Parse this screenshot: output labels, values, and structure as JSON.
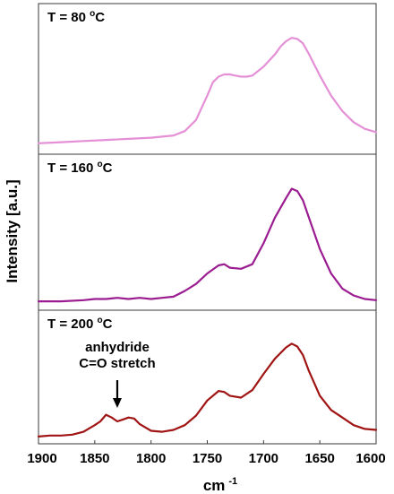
{
  "chart_data": {
    "type": "line",
    "layout": "stacked-panels",
    "x_reversed": true,
    "xlim": [
      1900,
      1600
    ],
    "xticks": [
      1900,
      1850,
      1800,
      1750,
      1700,
      1650,
      1600
    ],
    "xlabel": "cm",
    "xlabel_sup": "-1",
    "ylabel": "Intensity [a.u.]",
    "yticks_shown": false,
    "panels": [
      {
        "title_prefix": "T = 80 ",
        "title_sup": "o",
        "title_suffix": "C",
        "color": "#e58fd6",
        "ylim": [
          0,
          1.05
        ],
        "points": [
          [
            1900,
            0.05
          ],
          [
            1880,
            0.06
          ],
          [
            1860,
            0.07
          ],
          [
            1840,
            0.08
          ],
          [
            1820,
            0.09
          ],
          [
            1800,
            0.1
          ],
          [
            1780,
            0.12
          ],
          [
            1770,
            0.16
          ],
          [
            1760,
            0.26
          ],
          [
            1750,
            0.48
          ],
          [
            1745,
            0.6
          ],
          [
            1740,
            0.65
          ],
          [
            1735,
            0.67
          ],
          [
            1730,
            0.67
          ],
          [
            1725,
            0.66
          ],
          [
            1720,
            0.65
          ],
          [
            1715,
            0.65
          ],
          [
            1710,
            0.66
          ],
          [
            1700,
            0.74
          ],
          [
            1690,
            0.85
          ],
          [
            1685,
            0.92
          ],
          [
            1680,
            0.97
          ],
          [
            1675,
            1.0
          ],
          [
            1670,
            0.99
          ],
          [
            1665,
            0.95
          ],
          [
            1660,
            0.86
          ],
          [
            1650,
            0.66
          ],
          [
            1640,
            0.48
          ],
          [
            1630,
            0.34
          ],
          [
            1620,
            0.24
          ],
          [
            1610,
            0.18
          ],
          [
            1600,
            0.15
          ]
        ]
      },
      {
        "title_prefix": "T = 160 ",
        "title_sup": "o",
        "title_suffix": "C",
        "color": "#9b1c90",
        "ylim": [
          0,
          1.05
        ],
        "points": [
          [
            1900,
            0.03
          ],
          [
            1880,
            0.03
          ],
          [
            1860,
            0.04
          ],
          [
            1850,
            0.05
          ],
          [
            1840,
            0.05
          ],
          [
            1830,
            0.06
          ],
          [
            1820,
            0.05
          ],
          [
            1810,
            0.06
          ],
          [
            1800,
            0.05
          ],
          [
            1790,
            0.06
          ],
          [
            1780,
            0.07
          ],
          [
            1770,
            0.12
          ],
          [
            1760,
            0.18
          ],
          [
            1750,
            0.27
          ],
          [
            1740,
            0.34
          ],
          [
            1735,
            0.35
          ],
          [
            1730,
            0.32
          ],
          [
            1720,
            0.31
          ],
          [
            1710,
            0.35
          ],
          [
            1700,
            0.53
          ],
          [
            1690,
            0.75
          ],
          [
            1680,
            0.92
          ],
          [
            1675,
            1.0
          ],
          [
            1670,
            0.98
          ],
          [
            1665,
            0.9
          ],
          [
            1660,
            0.76
          ],
          [
            1650,
            0.48
          ],
          [
            1640,
            0.27
          ],
          [
            1630,
            0.14
          ],
          [
            1620,
            0.08
          ],
          [
            1610,
            0.05
          ],
          [
            1600,
            0.04
          ]
        ]
      },
      {
        "title_prefix": "T = 200 ",
        "title_sup": "o",
        "title_suffix": "C",
        "color": "#a01414",
        "ylim": [
          0,
          1.05
        ],
        "points": [
          [
            1900,
            0.02
          ],
          [
            1890,
            0.03
          ],
          [
            1880,
            0.03
          ],
          [
            1870,
            0.04
          ],
          [
            1860,
            0.07
          ],
          [
            1850,
            0.14
          ],
          [
            1845,
            0.18
          ],
          [
            1840,
            0.25
          ],
          [
            1835,
            0.22
          ],
          [
            1830,
            0.18
          ],
          [
            1825,
            0.2
          ],
          [
            1820,
            0.22
          ],
          [
            1815,
            0.21
          ],
          [
            1810,
            0.15
          ],
          [
            1800,
            0.08
          ],
          [
            1790,
            0.07
          ],
          [
            1780,
            0.09
          ],
          [
            1770,
            0.14
          ],
          [
            1760,
            0.24
          ],
          [
            1750,
            0.4
          ],
          [
            1740,
            0.5
          ],
          [
            1735,
            0.49
          ],
          [
            1730,
            0.45
          ],
          [
            1720,
            0.43
          ],
          [
            1710,
            0.51
          ],
          [
            1700,
            0.68
          ],
          [
            1690,
            0.84
          ],
          [
            1680,
            0.96
          ],
          [
            1675,
            1.0
          ],
          [
            1670,
            0.97
          ],
          [
            1665,
            0.88
          ],
          [
            1660,
            0.72
          ],
          [
            1650,
            0.45
          ],
          [
            1640,
            0.3
          ],
          [
            1630,
            0.22
          ],
          [
            1620,
            0.14
          ],
          [
            1610,
            0.1
          ],
          [
            1600,
            0.09
          ]
        ],
        "annotation": {
          "lines": [
            "anhydride",
            "C=O stretch"
          ],
          "arrow_x": 1830
        }
      }
    ]
  }
}
